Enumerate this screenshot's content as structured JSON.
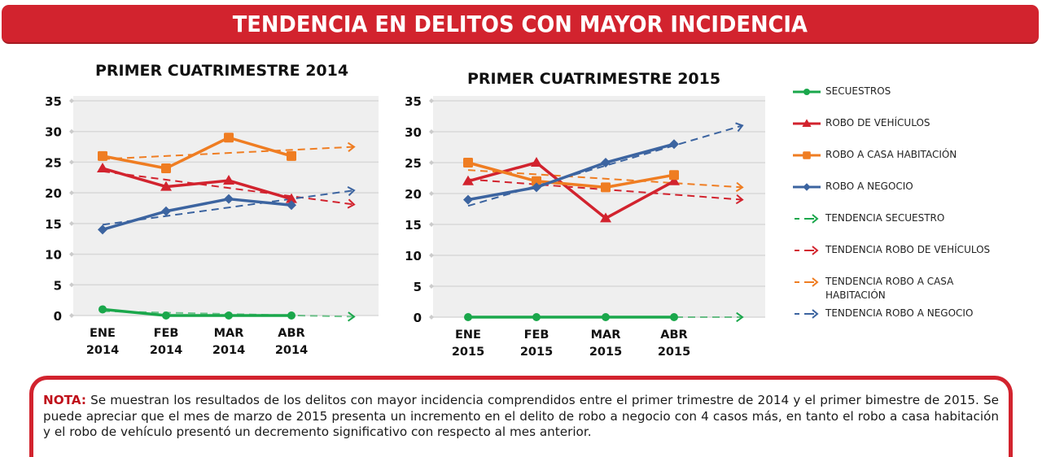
{
  "header": {
    "title": "TENDENCIA EN DELITOS CON MAYOR INCIDENCIA"
  },
  "colors": {
    "banner": "#d2232e",
    "secuestros": "#1aa74b",
    "robo_vehiculos": "#d2232e",
    "robo_casa": "#ef7d22",
    "robo_negocio": "#3c64a0",
    "plot_bg": "#efefef",
    "grid": "#d8d8d8"
  },
  "legend": {
    "items": [
      {
        "label": "SECUESTROS",
        "key": "secuestros",
        "style": "solid",
        "marker": "circle"
      },
      {
        "label": "ROBO DE VEHÍCULOS",
        "key": "robo_vehiculos",
        "style": "solid",
        "marker": "triangle"
      },
      {
        "label": "ROBO A CASA HABITACIÓN",
        "key": "robo_casa",
        "style": "solid",
        "marker": "square"
      },
      {
        "label": "ROBO A NEGOCIO",
        "key": "robo_negocio",
        "style": "solid",
        "marker": "diamond"
      },
      {
        "label": "TENDENCIA SECUESTRO",
        "key": "secuestros",
        "style": "dashed-arrow"
      },
      {
        "label": "TENDENCIA ROBO DE VEHÍCULOS",
        "key": "robo_vehiculos",
        "style": "dashed-arrow"
      },
      {
        "label": "TENDENCIA ROBO A CASA HABITACIÓN",
        "key": "robo_casa",
        "style": "dashed-arrow"
      },
      {
        "label": "TENDENCIA ROBO A NEGOCIO",
        "key": "robo_negocio",
        "style": "dashed-arrow"
      }
    ]
  },
  "note": {
    "label": "NOTA:",
    "text": " Se muestran los resultados de los delitos con mayor incidencia comprendidos entre el primer trimestre de 2014 y el primer bimestre de 2015. Se puede apreciar que el mes de marzo de 2015 presenta un incremento en el delito de robo a negocio con 4 casos más, en tanto el robo a casa habitación y el robo de vehículo presentó un decremento significativo con respecto al mes anterior."
  },
  "chart_data": [
    {
      "type": "line",
      "title": "PRIMER CUATRIMESTRE 2014",
      "categories": [
        "ENE\n2014",
        "FEB\n2014",
        "MAR\n2014",
        "ABR\n2014"
      ],
      "xlabel": "",
      "ylabel": "",
      "ylim": [
        0,
        35
      ],
      "yticks": [
        0,
        5,
        10,
        15,
        20,
        25,
        30,
        35
      ],
      "grid": true,
      "legend_position": "right",
      "series": [
        {
          "name": "SECUESTROS",
          "key": "secuestros",
          "marker": "circle",
          "values": [
            1,
            0,
            0,
            0
          ]
        },
        {
          "name": "ROBO DE VEHÍCULOS",
          "key": "robo_vehiculos",
          "marker": "triangle",
          "values": [
            24,
            21,
            22,
            19
          ]
        },
        {
          "name": "ROBO A CASA HABITACIÓN",
          "key": "robo_casa",
          "marker": "square",
          "values": [
            26,
            24,
            29,
            26
          ]
        },
        {
          "name": "ROBO A NEGOCIO",
          "key": "robo_negocio",
          "marker": "diamond",
          "values": [
            14,
            17,
            19,
            18
          ]
        }
      ],
      "trends": [
        {
          "name": "TENDENCIA SECUESTRO",
          "key": "secuestros",
          "start": 0.7,
          "end": -0.2
        },
        {
          "name": "TENDENCIA ROBO DE VEHÍCULOS",
          "key": "robo_vehiculos",
          "start": 23.5,
          "end": 18.1
        },
        {
          "name": "TENDENCIA ROBO A CASA HABITACIÓN",
          "key": "robo_casa",
          "start": 25.5,
          "end": 27.5
        },
        {
          "name": "TENDENCIA ROBO A NEGOCIO",
          "key": "robo_negocio",
          "start": 14.8,
          "end": 20.4
        }
      ]
    },
    {
      "type": "line",
      "title": "PRIMER CUATRIMESTRE 2015",
      "categories": [
        "ENE\n2015",
        "FEB\n2015",
        "MAR\n2015",
        "ABR\n2015"
      ],
      "xlabel": "",
      "ylabel": "",
      "ylim": [
        0,
        35
      ],
      "yticks": [
        0,
        5,
        10,
        15,
        20,
        25,
        30,
        35
      ],
      "grid": true,
      "legend_position": "right",
      "series": [
        {
          "name": "SECUESTROS",
          "key": "secuestros",
          "marker": "circle",
          "values": [
            0,
            0,
            0,
            0
          ]
        },
        {
          "name": "ROBO DE VEHÍCULOS",
          "key": "robo_vehiculos",
          "marker": "triangle",
          "values": [
            22,
            25,
            16,
            22
          ]
        },
        {
          "name": "ROBO A CASA HABITACIÓN",
          "key": "robo_casa",
          "marker": "square",
          "values": [
            25,
            22,
            21,
            23
          ]
        },
        {
          "name": "ROBO A NEGOCIO",
          "key": "robo_negocio",
          "marker": "diamond",
          "values": [
            19,
            21,
            25,
            28
          ]
        }
      ],
      "trends": [
        {
          "name": "TENDENCIA SECUESTRO",
          "key": "secuestros",
          "start": 0,
          "end": 0
        },
        {
          "name": "TENDENCIA ROBO DE VEHÍCULOS",
          "key": "robo_vehiculos",
          "start": 22.3,
          "end": 19.0
        },
        {
          "name": "TENDENCIA ROBO A CASA HABITACIÓN",
          "key": "robo_casa",
          "start": 23.8,
          "end": 21.0
        },
        {
          "name": "TENDENCIA ROBO A NEGOCIO",
          "key": "robo_negocio",
          "start": 18.0,
          "end": 31.0
        }
      ]
    }
  ]
}
